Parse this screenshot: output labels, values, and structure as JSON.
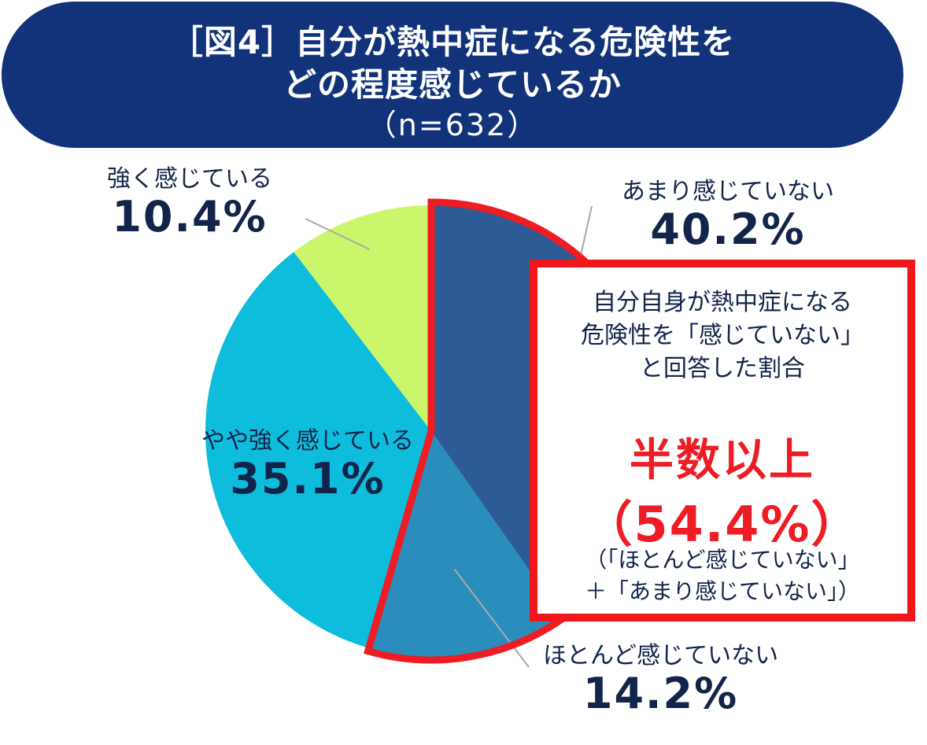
{
  "title": {
    "line1": "［図4］自分が熱中症になる危険性を",
    "line2": "どの程度感じているか",
    "sample": "（n=632）"
  },
  "colors": {
    "banner": "#12337a",
    "highlight": "#ee1c24",
    "text": "#13244a"
  },
  "chart_data": {
    "type": "pie",
    "title": "自分が熱中症になる危険性をどの程度感じているか",
    "n": 632,
    "start": "12 o'clock, clockwise",
    "slices": [
      {
        "label": "あまり感じていない",
        "value": 40.2,
        "value_label": "40.2%",
        "color": "#2d5b96",
        "highlighted": true
      },
      {
        "label": "ほとんど感じていない",
        "value": 14.2,
        "value_label": "14.2%",
        "color": "#2a8dbb",
        "highlighted": true
      },
      {
        "label": "やや強く感じている",
        "value": 35.1,
        "value_label": "35.1%",
        "color": "#0ebcdc",
        "highlighted": false
      },
      {
        "label": "強く感じている",
        "value": 10.4,
        "value_label": "10.4%",
        "color": "#c9f66b",
        "highlighted": false
      }
    ]
  },
  "callout": {
    "desc_line1": "自分自身が熱中症になる",
    "desc_line2": "危険性を「感じていない」",
    "desc_line3": "と回答した割合",
    "headline": "半数以上",
    "percent": "（54.4%）",
    "note_line1": "（「ほとんど感じていない」",
    "note_line2": "＋「あまり感じていない」）"
  }
}
